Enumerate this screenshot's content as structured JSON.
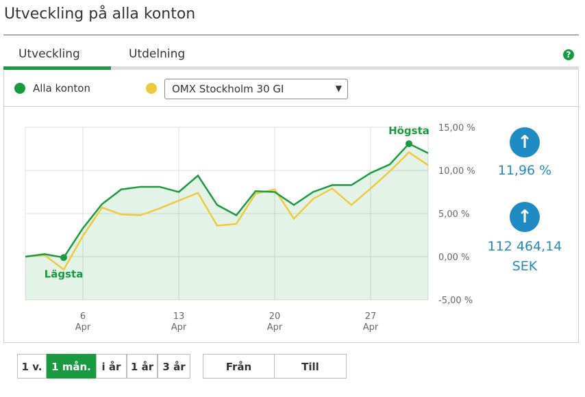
{
  "header": {
    "title": "Utveckling på alla konton"
  },
  "tabs": [
    "Utveckling",
    "Utdelning"
  ],
  "help": "?",
  "legend": {
    "series": "Alla konton",
    "benchmark": "OMX Stockholm 30 GI"
  },
  "chart_data": {
    "type": "line",
    "categories": [
      null,
      null,
      null,
      "6 Apr",
      null,
      null,
      null,
      null,
      "13 Apr",
      null,
      null,
      null,
      null,
      "20 Apr",
      null,
      null,
      null,
      null,
      "27 Apr",
      null,
      null,
      null
    ],
    "series": [
      {
        "name": "Alla konton",
        "color": "#1a9a40",
        "values": [
          0,
          0.3,
          -0.1,
          3.3,
          6.1,
          7.8,
          8.1,
          8.1,
          7.5,
          9.4,
          6.0,
          4.8,
          7.6,
          7.5,
          6.0,
          7.5,
          8.3,
          8.3,
          9.7,
          10.7,
          13.1,
          12.0
        ]
      },
      {
        "name": "OMX Stockholm 30 GI",
        "color": "#f0c93a",
        "values": [
          0,
          0.2,
          -1.5,
          2.4,
          5.7,
          4.9,
          4.8,
          5.6,
          6.5,
          7.4,
          3.6,
          3.8,
          7.3,
          7.8,
          4.4,
          6.7,
          7.9,
          6.0,
          7.9,
          9.9,
          12.1,
          10.6
        ]
      }
    ],
    "ylim": [
      -5,
      15
    ],
    "yticks": [
      {
        "value": -5,
        "label": "-5,00 %"
      },
      {
        "value": 0,
        "label": "0,00 %"
      },
      {
        "value": 5,
        "label": "5,00 %"
      },
      {
        "value": 10,
        "label": "10,00 %"
      },
      {
        "value": 15,
        "label": "15,00 %"
      }
    ],
    "grid": true,
    "annotations": {
      "max": "Högsta",
      "min": "Lägsta"
    }
  },
  "stats": {
    "return": "11,96 %",
    "value": "112 464,14 SEK"
  },
  "periods": [
    "1 v.",
    "1 mån.",
    "i år",
    "1 år",
    "3 år"
  ],
  "range": [
    "Från",
    "Till"
  ]
}
